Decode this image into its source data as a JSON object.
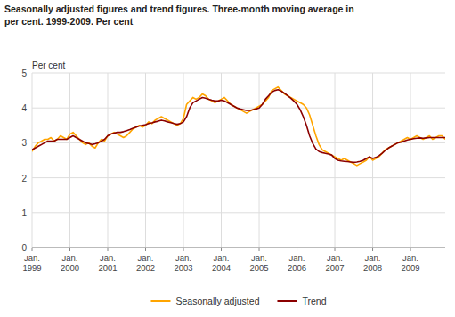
{
  "chart_data": {
    "type": "line",
    "title": [
      "Seasonally adjusted figures and trend figures. Three-month moving average in",
      "per cent. 1999-2009. Per cent"
    ],
    "y_label": "Per cent",
    "categories": [
      "Jan.\n1999",
      null,
      null,
      null,
      null,
      null,
      null,
      null,
      null,
      null,
      null,
      null,
      "Jan.\n2000",
      null,
      null,
      null,
      null,
      null,
      null,
      null,
      null,
      null,
      null,
      null,
      "Jan.\n2001",
      null,
      null,
      null,
      null,
      null,
      null,
      null,
      null,
      null,
      null,
      null,
      "Jan.\n2002",
      null,
      null,
      null,
      null,
      null,
      null,
      null,
      null,
      null,
      null,
      null,
      "Jan.\n2003",
      null,
      null,
      null,
      null,
      null,
      null,
      null,
      null,
      null,
      null,
      null,
      "Jan.\n2004",
      null,
      null,
      null,
      null,
      null,
      null,
      null,
      null,
      null,
      null,
      null,
      "Jan.\n2005",
      null,
      null,
      null,
      null,
      null,
      null,
      null,
      null,
      null,
      null,
      null,
      "Jan.\n2006",
      null,
      null,
      null,
      null,
      null,
      null,
      null,
      null,
      null,
      null,
      null,
      "Jan.\n2007",
      null,
      null,
      null,
      null,
      null,
      null,
      null,
      null,
      null,
      null,
      null,
      "Jan.\n2008",
      null,
      null,
      null,
      null,
      null,
      null,
      null,
      null,
      null,
      null,
      null,
      "Jan.\n2009",
      null,
      null,
      null,
      null,
      null,
      null,
      null,
      null,
      null,
      null,
      null
    ],
    "series": [
      {
        "name": "Seasonally adjusted",
        "color": "#FFA500",
        "values": [
          2.75,
          2.9,
          3.0,
          3.05,
          3.1,
          3.1,
          3.15,
          3.05,
          3.1,
          3.2,
          3.15,
          3.1,
          3.25,
          3.3,
          3.2,
          3.1,
          3.0,
          2.95,
          3.0,
          2.9,
          2.85,
          3.0,
          3.1,
          3.05,
          3.2,
          3.25,
          3.3,
          3.25,
          3.2,
          3.15,
          3.2,
          3.3,
          3.4,
          3.45,
          3.5,
          3.45,
          3.5,
          3.6,
          3.55,
          3.65,
          3.7,
          3.75,
          3.7,
          3.65,
          3.6,
          3.55,
          3.5,
          3.55,
          3.7,
          4.1,
          4.2,
          4.3,
          4.25,
          4.3,
          4.4,
          4.35,
          4.25,
          4.2,
          4.15,
          4.2,
          4.25,
          4.3,
          4.2,
          4.1,
          4.05,
          4.0,
          3.95,
          3.9,
          3.85,
          3.9,
          3.95,
          4.0,
          4.05,
          4.1,
          4.2,
          4.3,
          4.5,
          4.55,
          4.6,
          4.5,
          4.4,
          4.35,
          4.3,
          4.25,
          4.2,
          4.15,
          4.1,
          4.0,
          3.8,
          3.5,
          3.2,
          2.95,
          2.8,
          2.75,
          2.7,
          2.65,
          2.6,
          2.55,
          2.5,
          2.55,
          2.5,
          2.45,
          2.4,
          2.35,
          2.4,
          2.45,
          2.5,
          2.6,
          2.5,
          2.55,
          2.6,
          2.7,
          2.8,
          2.85,
          2.9,
          2.95,
          3.0,
          3.05,
          3.1,
          3.15,
          3.1,
          3.15,
          3.2,
          3.15,
          3.1,
          3.15,
          3.2,
          3.1,
          3.15,
          3.2,
          3.2,
          3.1
        ]
      },
      {
        "name": "Trend",
        "color": "#8B0000",
        "values": [
          2.8,
          2.85,
          2.9,
          2.95,
          3.0,
          3.05,
          3.05,
          3.05,
          3.1,
          3.1,
          3.1,
          3.1,
          3.15,
          3.2,
          3.15,
          3.1,
          3.05,
          3.0,
          2.98,
          2.95,
          2.97,
          3.0,
          3.05,
          3.1,
          3.2,
          3.25,
          3.28,
          3.3,
          3.3,
          3.32,
          3.35,
          3.38,
          3.42,
          3.45,
          3.48,
          3.5,
          3.52,
          3.55,
          3.57,
          3.6,
          3.62,
          3.65,
          3.63,
          3.6,
          3.58,
          3.55,
          3.53,
          3.55,
          3.6,
          3.75,
          4.0,
          4.15,
          4.2,
          4.25,
          4.3,
          4.28,
          4.25,
          4.22,
          4.2,
          4.2,
          4.22,
          4.2,
          4.15,
          4.1,
          4.05,
          4.0,
          3.97,
          3.95,
          3.93,
          3.93,
          3.95,
          3.97,
          4.0,
          4.1,
          4.25,
          4.35,
          4.45,
          4.5,
          4.52,
          4.48,
          4.42,
          4.35,
          4.28,
          4.2,
          4.1,
          3.95,
          3.75,
          3.5,
          3.2,
          2.98,
          2.82,
          2.75,
          2.72,
          2.7,
          2.68,
          2.65,
          2.55,
          2.5,
          2.48,
          2.47,
          2.46,
          2.45,
          2.44,
          2.45,
          2.47,
          2.5,
          2.55,
          2.6,
          2.55,
          2.58,
          2.63,
          2.7,
          2.78,
          2.85,
          2.9,
          2.95,
          3.0,
          3.02,
          3.05,
          3.08,
          3.1,
          3.12,
          3.13,
          3.14,
          3.13,
          3.14,
          3.15,
          3.15,
          3.15,
          3.15,
          3.15,
          3.15
        ]
      }
    ],
    "ylim": [
      0,
      5
    ],
    "yticks": [
      0,
      1,
      2,
      3,
      4,
      5
    ],
    "grid": true,
    "legend": "bottom"
  }
}
